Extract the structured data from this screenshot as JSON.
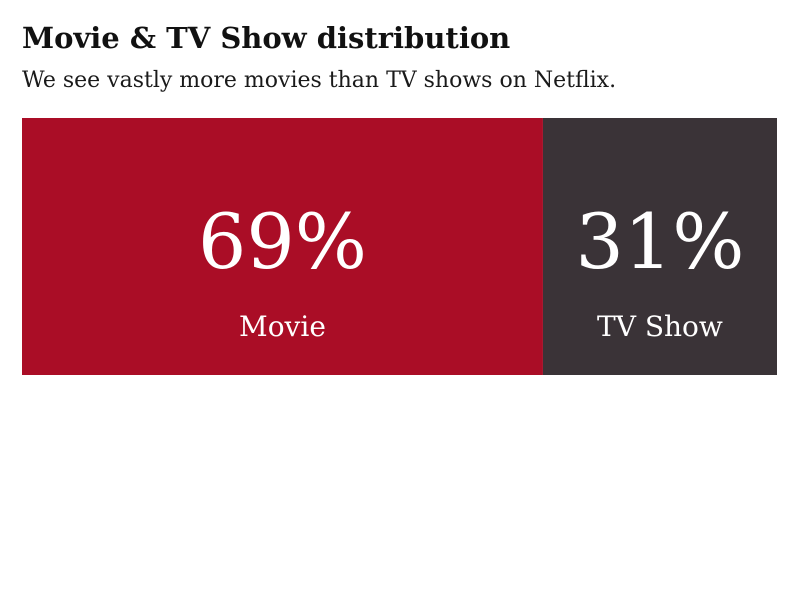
{
  "header": {
    "title": "Movie & TV Show distribution",
    "subtitle": "We see vastly more movies than TV shows on Netflix."
  },
  "chart_data": {
    "type": "bar",
    "orientation": "horizontal-stacked-100",
    "title": "Movie & TV Show distribution",
    "subtitle": "We see vastly more movies than TV shows on Netflix.",
    "categories": [
      "Movie",
      "TV Show"
    ],
    "values": [
      69,
      31
    ],
    "value_labels": [
      "69%",
      "31%"
    ],
    "unit": "%",
    "xlim": [
      0,
      100
    ],
    "grid": false,
    "legend": "none",
    "colors": [
      "#AA0D26",
      "#3A3337"
    ],
    "label_color": "#FFFFFF"
  }
}
